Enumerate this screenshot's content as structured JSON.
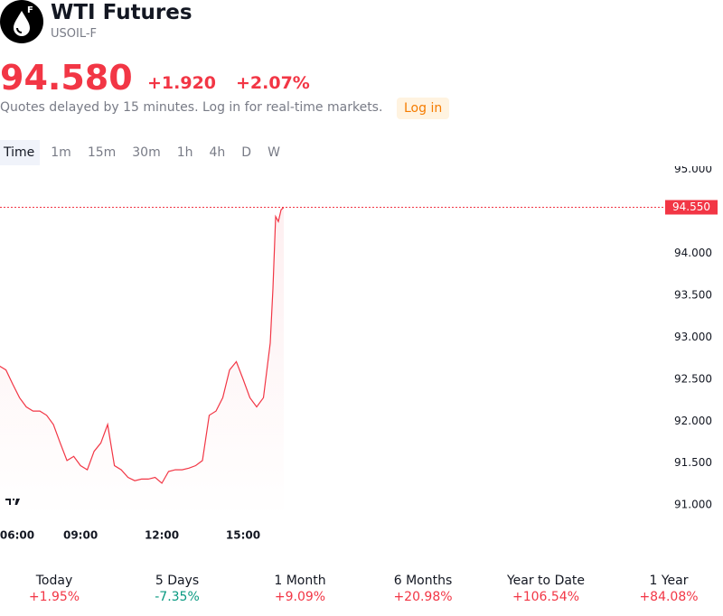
{
  "header": {
    "badge": "F",
    "title": "WTI Futures",
    "symbol": "USOIL-F",
    "price": "94.580",
    "change": "+1.920",
    "change_percent": "+2.07%",
    "note": "Quotes delayed by 15 minutes. Log in for real-time markets.",
    "login": "Log in"
  },
  "intervals": [
    "Time",
    "1m",
    "15m",
    "30m",
    "1h",
    "4h",
    "D",
    "W"
  ],
  "performance": [
    {
      "label": "Today",
      "value": "+1.95%"
    },
    {
      "label": "5 Days",
      "value": "-7.35%"
    },
    {
      "label": "1 Month",
      "value": "+9.09%"
    },
    {
      "label": "6 Months",
      "value": "+20.98%"
    },
    {
      "label": "Year to Date",
      "value": "+106.54%"
    },
    {
      "label": "1 Year",
      "value": "+84.08%"
    }
  ],
  "chart_data": {
    "type": "line",
    "color": "#f23645",
    "x": [
      6,
      6.25,
      6.5,
      6.75,
      7,
      7.25,
      7.5,
      7.75,
      8,
      8.25,
      8.5,
      8.75,
      9,
      9.25,
      9.5,
      9.75,
      10,
      10.25,
      10.5,
      10.75,
      11,
      11.25,
      11.5,
      11.75,
      12,
      12.25,
      12.5,
      12.75,
      13,
      13.25,
      13.5,
      13.75,
      14,
      14.25,
      14.5,
      14.75,
      15,
      15.25,
      15.5,
      15.75,
      16,
      16.1,
      16.2,
      16.3,
      16.4,
      16.5
    ],
    "values": [
      92.66,
      92.61,
      92.44,
      92.28,
      92.17,
      92.12,
      92.12,
      92.07,
      91.96,
      91.74,
      91.53,
      91.58,
      91.47,
      91.42,
      91.64,
      91.74,
      91.96,
      91.47,
      91.42,
      91.33,
      91.29,
      91.31,
      91.31,
      91.33,
      91.26,
      91.4,
      91.42,
      91.42,
      91.44,
      91.47,
      91.53,
      92.07,
      92.12,
      92.28,
      92.61,
      92.71,
      92.5,
      92.28,
      92.17,
      92.28,
      92.93,
      93.58,
      94.44,
      94.38,
      94.52,
      94.55
    ],
    "xlim": [
      6.03,
      30.37
    ],
    "xticks": [
      {
        "value": 6,
        "label": "06:00"
      },
      {
        "value": 9,
        "label": "09:00"
      },
      {
        "value": 12,
        "label": "12:00"
      },
      {
        "value": 15,
        "label": "15:00"
      }
    ],
    "ylim": [
      90.84,
      95.04
    ],
    "yticks": [
      {
        "value": 95,
        "label": "95.000"
      },
      {
        "value": 94,
        "label": "94.000"
      },
      {
        "value": 93.5,
        "label": "93.500"
      },
      {
        "value": 93,
        "label": "93.000"
      },
      {
        "value": 92.5,
        "label": "92.500"
      },
      {
        "value": 92,
        "label": "92.000"
      },
      {
        "value": 91.5,
        "label": "91.500"
      },
      {
        "value": 91,
        "label": "91.000"
      }
    ],
    "last_price": {
      "value": 94.55,
      "label": "94.550"
    }
  }
}
